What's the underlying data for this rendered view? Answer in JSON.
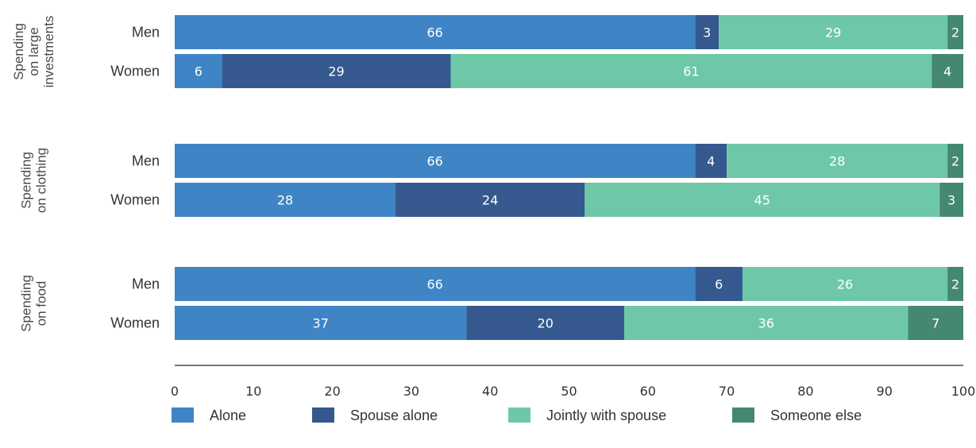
{
  "colors": {
    "alone": "#3f85c6",
    "spouse_alone": "#35598f",
    "jointly": "#6ec8a8",
    "someone_else": "#458872",
    "axis": "#4a4a4a"
  },
  "chart_data": {
    "type": "bar",
    "orientation": "horizontal",
    "stacked": true,
    "xlim": [
      0,
      100
    ],
    "ticks": [
      0,
      10,
      20,
      30,
      40,
      50,
      60,
      70,
      80,
      90,
      100
    ],
    "tick_labels": [
      "0",
      "10",
      "20",
      "30",
      "40",
      "50",
      "60",
      "70",
      "80",
      "90",
      "100"
    ],
    "legend_position": "bottom",
    "series": [
      {
        "name": "Alone",
        "color_key": "alone"
      },
      {
        "name": "Spouse alone",
        "color_key": "spouse_alone"
      },
      {
        "name": "Jointly with spouse",
        "color_key": "jointly"
      },
      {
        "name": "Someone else",
        "color_key": "someone_else"
      }
    ],
    "groups": [
      {
        "label_lines": [
          "Spending",
          "on large",
          "investments"
        ],
        "rows": [
          {
            "label": "Men",
            "values": [
              66,
              3,
              29,
              2
            ]
          },
          {
            "label": "Women",
            "values": [
              6,
              29,
              61,
              4
            ]
          }
        ]
      },
      {
        "label_lines": [
          "Spending",
          "on clothing"
        ],
        "rows": [
          {
            "label": "Men",
            "values": [
              66,
              4,
              28,
              2
            ]
          },
          {
            "label": "Women",
            "values": [
              28,
              24,
              45,
              3
            ]
          }
        ]
      },
      {
        "label_lines": [
          "Spending",
          "on food"
        ],
        "rows": [
          {
            "label": "Men",
            "values": [
              66,
              6,
              26,
              2
            ]
          },
          {
            "label": "Women",
            "values": [
              37,
              20,
              36,
              7
            ]
          }
        ]
      }
    ]
  }
}
